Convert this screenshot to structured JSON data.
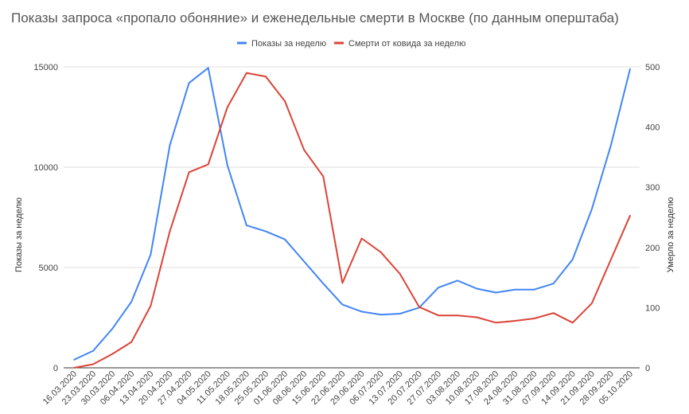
{
  "chart_data": {
    "type": "line",
    "title": "Показы запроса «пропало обоняние» и еженедельные смерти в Москве (по данным оперштаба)",
    "categories": [
      "16.03.2020",
      "23.03.2020",
      "30.03.2020",
      "06.04.2020",
      "13.04.2020",
      "20.04.2020",
      "27.04.2020",
      "04.05.2020",
      "11.05.2020",
      "18.05.2020",
      "25.05.2020",
      "01.06.2020",
      "08.06.2020",
      "15.06.2020",
      "22.06.2020",
      "29.06.2020",
      "06.07.2020",
      "13.07.2020",
      "20.07.2020",
      "27.07.2020",
      "03.08.2020",
      "10.08.2020",
      "17.08.2020",
      "24.08.2020",
      "31.08.2020",
      "07.09.2020",
      "14.09.2020",
      "21.09.2020",
      "28.09.2020",
      "05.10.2020"
    ],
    "series": [
      {
        "name": "Показы за неделю",
        "color": "#4285f4",
        "axis": "left",
        "values": [
          400,
          850,
          1950,
          3300,
          5650,
          11100,
          14200,
          14950,
          10100,
          7100,
          6800,
          6400,
          5300,
          4200,
          3150,
          2800,
          2650,
          2700,
          3000,
          4000,
          4350,
          3950,
          3750,
          3900,
          3900,
          4200,
          5400,
          7900,
          11100,
          14900
        ]
      },
      {
        "name": "Смерти от ковида за неделю",
        "color": "#db4437",
        "axis": "right",
        "values": [
          0,
          6,
          23,
          43,
          103,
          227,
          325,
          338,
          433,
          490,
          484,
          443,
          362,
          318,
          141,
          215,
          192,
          156,
          101,
          87,
          87,
          84,
          75,
          78,
          82,
          91,
          75,
          107,
          180,
          253
        ]
      }
    ],
    "yleft": {
      "label": "Показы за неделю",
      "range": [
        0,
        15000
      ],
      "ticks": [
        0,
        5000,
        10000,
        15000
      ]
    },
    "yright": {
      "label": "Умерло за неделю",
      "range": [
        0,
        500
      ],
      "ticks": [
        0,
        100,
        200,
        300,
        400,
        500
      ]
    },
    "legend": "top-center",
    "grid": true
  }
}
